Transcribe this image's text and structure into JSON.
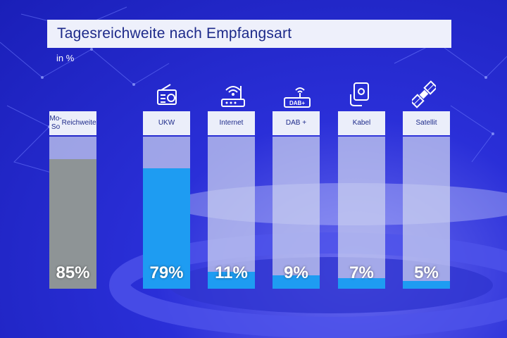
{
  "chart_data": {
    "type": "bar",
    "title": "Tagesreichweite nach Empfangsart",
    "unit": "in %",
    "ylim": [
      0,
      100
    ],
    "categories": [
      "Mo-So Reichweite",
      "UKW",
      "Internet",
      "DAB +",
      "Kabel",
      "Satellit"
    ],
    "category_lines": [
      [
        "Mo-So",
        "Reichweite"
      ],
      [
        "UKW"
      ],
      [
        "Internet"
      ],
      [
        "DAB +"
      ],
      [
        "Kabel"
      ],
      [
        "Satellit"
      ]
    ],
    "values": [
      85,
      79,
      11,
      9,
      7,
      5
    ],
    "value_labels": [
      "85%",
      "79%",
      "11%",
      "9%",
      "7%",
      "5%"
    ],
    "icons": [
      "",
      "radio-icon",
      "wifi-router-icon",
      "dab-radio-icon",
      "cable-socket-icon",
      "satellite-icon"
    ],
    "icon_texts": {
      "dab": "DAB+"
    },
    "colors": {
      "total": "#8e9496",
      "channel": "#1e9cf2",
      "track": "#cdd2f0"
    }
  }
}
